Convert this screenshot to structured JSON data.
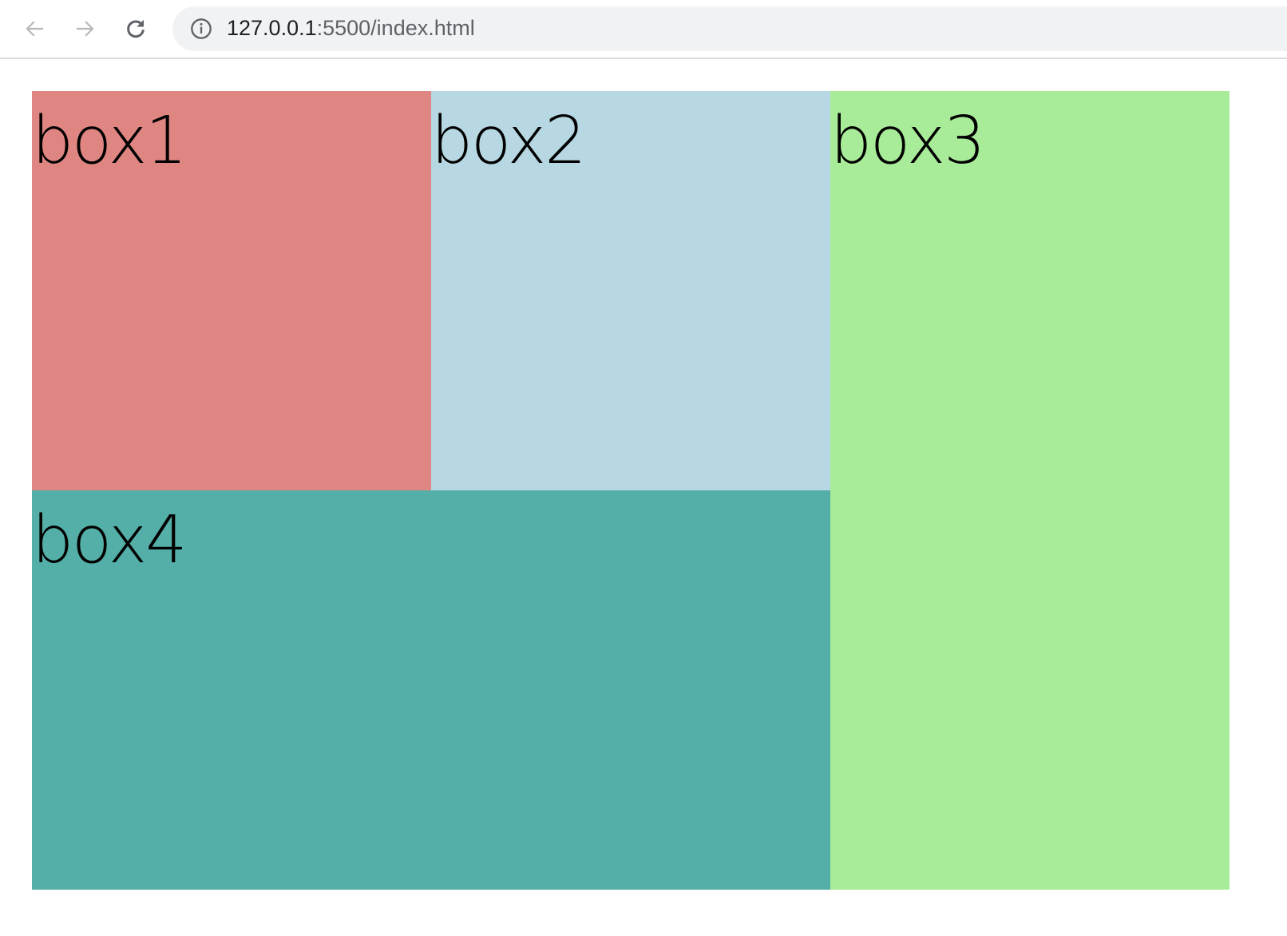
{
  "browser": {
    "url_host": "127.0.0.1",
    "url_rest": ":5500/index.html",
    "icons": {
      "back": "arrow-left-icon",
      "forward": "arrow-right-icon",
      "reload": "reload-icon",
      "info": "info-icon"
    }
  },
  "page": {
    "boxes": [
      {
        "label": "box1",
        "color": "#e08682"
      },
      {
        "label": "box2",
        "color": "#b7d8e3"
      },
      {
        "label": "box3",
        "color": "#a8ec99"
      },
      {
        "label": "box4",
        "color": "#54afa9"
      }
    ]
  }
}
